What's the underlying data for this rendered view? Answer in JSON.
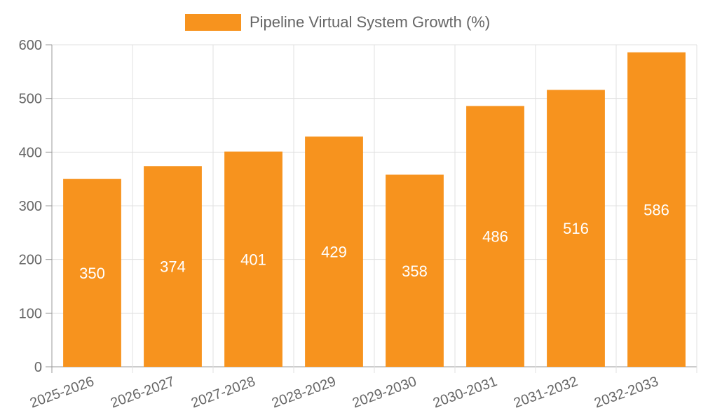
{
  "chart_data": {
    "type": "bar",
    "categories": [
      "2025-2026",
      "2026-2027",
      "2027-2028",
      "2028-2029",
      "2029-2030",
      "2030-2031",
      "2031-2032",
      "2032-2033"
    ],
    "series": [
      {
        "name": "Pipeline Virtual System Growth (%)",
        "values": [
          350,
          374,
          401,
          429,
          358,
          486,
          516,
          586
        ],
        "color": "#f7931e"
      }
    ],
    "data_labels": [
      "350",
      "374",
      "401",
      "429",
      "358",
      "486",
      "516",
      "586"
    ],
    "y_ticks": [
      "0",
      "100",
      "200",
      "300",
      "400",
      "500",
      "600"
    ],
    "ylim": [
      0,
      600
    ],
    "grid": true,
    "legend_position": "top-center",
    "title": "",
    "xlabel": "",
    "ylabel": ""
  }
}
